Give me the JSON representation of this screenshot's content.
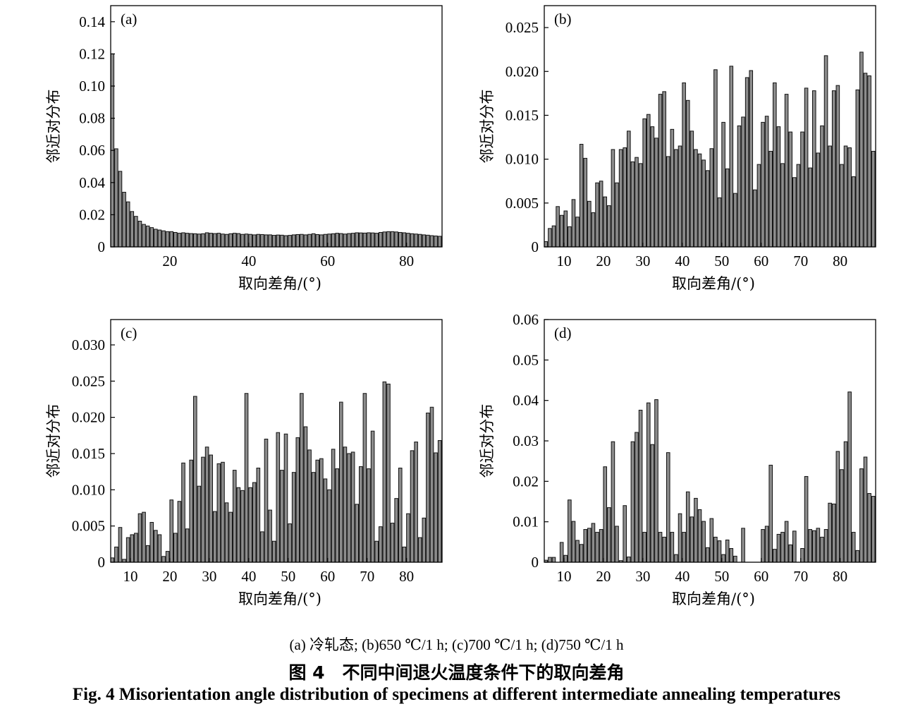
{
  "caption": {
    "subtitle": "(a) 冷轧态; (b)650 ℃/1 h; (c)700 ℃/1 h; (d)750 ℃/1 h",
    "title_cn": "图 4　不同中间退火温度条件下的取向差角",
    "title_en": "Fig. 4    Misorientation angle distribution of specimens at different intermediate annealing temperatures"
  },
  "colors": {
    "bar_fill": "#8c8c8c",
    "bar_stroke": "#111111",
    "axis": "#000000"
  },
  "chart_data": [
    {
      "type": "bar",
      "panel_label": "(a)",
      "xlabel": "取向差角/(°)",
      "ylabel": "邻近对分布",
      "xlim": [
        5,
        89
      ],
      "ylim": [
        0,
        0.15
      ],
      "xticks": [
        20,
        40,
        60,
        80
      ],
      "yticks": [
        0,
        0.02,
        0.04,
        0.06,
        0.08,
        0.1,
        0.12,
        0.14
      ],
      "ytick_labels": [
        "0",
        "0.02",
        "0.04",
        "0.06",
        "0.08",
        "0.10",
        "0.12",
        "0.14"
      ],
      "grid": false,
      "x_start": 5,
      "bin_width": 1,
      "values": [
        0.12,
        0.061,
        0.047,
        0.034,
        0.028,
        0.022,
        0.019,
        0.016,
        0.014,
        0.013,
        0.012,
        0.011,
        0.0105,
        0.01,
        0.0095,
        0.0095,
        0.009,
        0.0085,
        0.0088,
        0.0085,
        0.0083,
        0.0082,
        0.008,
        0.0082,
        0.0088,
        0.0085,
        0.0083,
        0.0085,
        0.008,
        0.0078,
        0.0082,
        0.0085,
        0.0083,
        0.0078,
        0.008,
        0.0078,
        0.0075,
        0.0078,
        0.0077,
        0.0075,
        0.0075,
        0.0072,
        0.0074,
        0.0073,
        0.007,
        0.0072,
        0.0075,
        0.0077,
        0.0078,
        0.0075,
        0.0078,
        0.0082,
        0.0077,
        0.0075,
        0.0078,
        0.008,
        0.0082,
        0.0085,
        0.0083,
        0.008,
        0.0083,
        0.0085,
        0.0088,
        0.0087,
        0.0086,
        0.0088,
        0.0087,
        0.0085,
        0.009,
        0.0093,
        0.0095,
        0.0095,
        0.0093,
        0.009,
        0.0088,
        0.0085,
        0.0082,
        0.008,
        0.0078,
        0.0075,
        0.0073,
        0.007,
        0.0068,
        0.0066,
        0.0065,
        0.0062,
        0.006,
        0.0058,
        0.0062,
        0.0064,
        0.0068,
        0.007,
        0.0072,
        0.0074,
        0.0075,
        0.0073,
        0.007,
        0.0068,
        0.0069,
        0.007
      ]
    },
    {
      "type": "bar",
      "panel_label": "(b)",
      "xlabel": "取向差角/(°)",
      "ylabel": "邻近对分布",
      "xlim": [
        5,
        89
      ],
      "ylim": [
        0,
        0.0275
      ],
      "xticks": [
        10,
        20,
        30,
        40,
        50,
        60,
        70,
        80
      ],
      "yticks": [
        0,
        0.005,
        0.01,
        0.015,
        0.02,
        0.025
      ],
      "ytick_labels": [
        "0",
        "0.005",
        "0.010",
        "0.015",
        "0.020",
        "0.025"
      ],
      "grid": false,
      "x_start": 5,
      "bin_width": 1,
      "values": [
        0.0006,
        0.0021,
        0.0024,
        0.0046,
        0.0036,
        0.0041,
        0.0023,
        0.0054,
        0.0034,
        0.0117,
        0.0101,
        0.0052,
        0.0039,
        0.0073,
        0.0075,
        0.0057,
        0.0047,
        0.0111,
        0.0073,
        0.0111,
        0.0113,
        0.0132,
        0.0097,
        0.0102,
        0.0095,
        0.0146,
        0.0151,
        0.0137,
        0.0124,
        0.0174,
        0.0177,
        0.0103,
        0.0134,
        0.0111,
        0.0115,
        0.0187,
        0.0167,
        0.0132,
        0.0111,
        0.0106,
        0.0099,
        0.0087,
        0.0112,
        0.0202,
        0.0056,
        0.0142,
        0.0089,
        0.0206,
        0.0061,
        0.0138,
        0.0148,
        0.0193,
        0.0201,
        0.0065,
        0.0094,
        0.0142,
        0.0149,
        0.0109,
        0.0187,
        0.0137,
        0.0095,
        0.0174,
        0.0131,
        0.0079,
        0.0094,
        0.0131,
        0.0181,
        0.009,
        0.0178,
        0.0107,
        0.0138,
        0.0218,
        0.0115,
        0.0178,
        0.0184,
        0.0094,
        0.0115,
        0.0113,
        0.008,
        0.0179,
        0.0222,
        0.0198,
        0.0195,
        0.0109,
        0.0112,
        0.0097
      ]
    },
    {
      "type": "bar",
      "panel_label": "(c)",
      "xlabel": "取向差角/(°)",
      "ylabel": "邻近对分布",
      "xlim": [
        5,
        89
      ],
      "ylim": [
        0,
        0.0335
      ],
      "xticks": [
        10,
        20,
        30,
        40,
        50,
        60,
        70,
        80
      ],
      "yticks": [
        0,
        0.005,
        0.01,
        0.015,
        0.02,
        0.025,
        0.03
      ],
      "ytick_labels": [
        "0",
        "0.005",
        "0.010",
        "0.015",
        "0.020",
        "0.025",
        "0.030"
      ],
      "grid": false,
      "x_start": 5,
      "bin_width": 1,
      "values": [
        0.0006,
        0.0021,
        0.0048,
        0.0004,
        0.0034,
        0.0038,
        0.004,
        0.0067,
        0.0069,
        0.0023,
        0.0055,
        0.0044,
        0.0038,
        0.0008,
        0.0015,
        0.0086,
        0.004,
        0.0084,
        0.0137,
        0.0046,
        0.0141,
        0.0229,
        0.0105,
        0.0145,
        0.0159,
        0.0148,
        0.007,
        0.0136,
        0.0138,
        0.0082,
        0.0069,
        0.0127,
        0.0103,
        0.0099,
        0.0233,
        0.0103,
        0.011,
        0.013,
        0.0042,
        0.017,
        0.0072,
        0.0029,
        0.0179,
        0.0127,
        0.0177,
        0.0053,
        0.0124,
        0.0172,
        0.0233,
        0.0187,
        0.0155,
        0.0124,
        0.0141,
        0.0143,
        0.0115,
        0.01,
        0.0156,
        0.0129,
        0.0221,
        0.0159,
        0.015,
        0.0152,
        0.008,
        0.0132,
        0.0233,
        0.0129,
        0.0181,
        0.0029,
        0.0049,
        0.0249,
        0.0246,
        0.0054,
        0.0088,
        0.013,
        0.0021,
        0.0067,
        0.0154,
        0.0166,
        0.0034,
        0.0061,
        0.0206,
        0.0214,
        0.0151,
        0.0168,
        0.004,
        0.0168,
        0.0056,
        0.0152
      ]
    },
    {
      "type": "bar",
      "panel_label": "(d)",
      "xlabel": "取向差角/(°)",
      "ylabel": "邻近对分布",
      "xlim": [
        5,
        89
      ],
      "ylim": [
        0,
        0.06
      ],
      "xticks": [
        10,
        20,
        30,
        40,
        50,
        60,
        70,
        80
      ],
      "yticks": [
        0,
        0.01,
        0.02,
        0.03,
        0.04,
        0.05,
        0.06
      ],
      "ytick_labels": [
        "0",
        "0.01",
        "0.02",
        "0.03",
        "0.04",
        "0.05",
        "0.06"
      ],
      "grid": false,
      "x_start": 5,
      "bin_width": 1,
      "values": [
        0.0005,
        0.0012,
        0.0012,
        0,
        0.0049,
        0.0017,
        0.0154,
        0.0101,
        0.0054,
        0.0044,
        0.0081,
        0.0084,
        0.0096,
        0.0074,
        0.0081,
        0.0236,
        0.0135,
        0.0298,
        0.0089,
        0.0004,
        0.014,
        0.0013,
        0.0298,
        0.0321,
        0.0376,
        0.0074,
        0.0394,
        0.0291,
        0.0402,
        0.0074,
        0.0062,
        0.0271,
        0.0074,
        0.0019,
        0.012,
        0.0074,
        0.0174,
        0.0112,
        0.0158,
        0.013,
        0.0101,
        0.0036,
        0.0108,
        0.0062,
        0.0053,
        0.0019,
        0.0055,
        0.0034,
        0.0015,
        0,
        0.0084,
        0,
        0,
        0,
        0,
        0.0081,
        0.0089,
        0.024,
        0.0032,
        0.0069,
        0.0074,
        0.0101,
        0.0043,
        0.0077,
        0,
        0.0034,
        0.0212,
        0.0081,
        0.0078,
        0.0084,
        0.0062,
        0.0081,
        0.0146,
        0.0144,
        0.0274,
        0.0229,
        0.0298,
        0.0421,
        0.0074,
        0.0029,
        0.0231,
        0.026,
        0.017,
        0.0163,
        0.0058,
        0.0058
      ]
    }
  ]
}
